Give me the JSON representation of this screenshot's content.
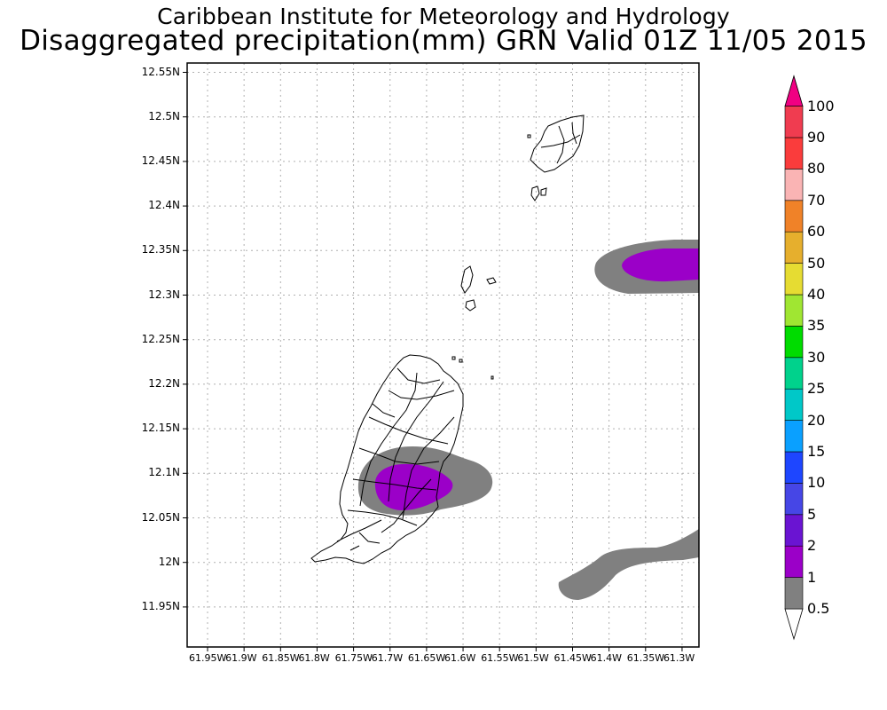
{
  "title_line1": "Caribbean Institute for Meteorology and Hydrology",
  "title_line2": "Disaggregated precipitation(mm) GRN Valid 01Z 11/05 2015",
  "y_ticks": [
    "12.55N",
    "12.5N",
    "12.45N",
    "12.4N",
    "12.35N",
    "12.3N",
    "12.25N",
    "12.2N",
    "12.15N",
    "12.1N",
    "12.05N",
    "12N",
    "11.95N"
  ],
  "x_ticks": [
    "61.95W",
    "61.9W",
    "61.85W",
    "61.8W",
    "61.75W",
    "61.7W",
    "61.65W",
    "61.6W",
    "61.55W",
    "61.5W",
    "61.45W",
    "61.4W",
    "61.35W",
    "61.3W"
  ],
  "legend": {
    "levels": [
      {
        "label": "0.5",
        "color": "#ffffff"
      },
      {
        "label": "1",
        "color": "#808080"
      },
      {
        "label": "2",
        "color": "#9b00c8"
      },
      {
        "label": "5",
        "color": "#6a14d2"
      },
      {
        "label": "10",
        "color": "#4646e6"
      },
      {
        "label": "15",
        "color": "#1e46ff"
      },
      {
        "label": "20",
        "color": "#0aa0ff"
      },
      {
        "label": "25",
        "color": "#00c8c8"
      },
      {
        "label": "30",
        "color": "#00d28c"
      },
      {
        "label": "35",
        "color": "#00dc00"
      },
      {
        "label": "40",
        "color": "#a0e632"
      },
      {
        "label": "50",
        "color": "#e6dc32"
      },
      {
        "label": "60",
        "color": "#e6af2d"
      },
      {
        "label": "70",
        "color": "#f08228"
      },
      {
        "label": "80",
        "color": "#fab4b4"
      },
      {
        "label": "90",
        "color": "#fa3c3c"
      },
      {
        "label": "100",
        "color": "#f03c50"
      }
    ],
    "top_arrow_color": "#f00082",
    "bottom_arrow_color": "#ffffff"
  }
}
